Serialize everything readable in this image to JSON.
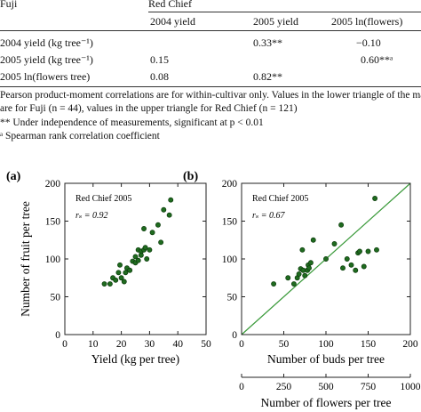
{
  "table": {
    "left_group": "Fuji",
    "right_group": "Red Chief",
    "columns": [
      "2004 yield",
      "2005 yield",
      "2005 ln(flowers)"
    ],
    "rows": [
      {
        "label": "2004 yield (kg tree⁻¹)",
        "cells": [
          "",
          "0.33**",
          "−0.10"
        ]
      },
      {
        "label": "2005 yield (kg tree⁻¹)",
        "cells": [
          "0.15",
          "",
          "0.60**ᵃ"
        ]
      },
      {
        "label": "2005 ln(flowers tree)",
        "cells": [
          "0.08",
          "0.82**",
          ""
        ]
      }
    ]
  },
  "notes": {
    "line1": "Pearson product-moment correlations are for within-cultivar only. Values in the lower triangle of the matrix",
    "line2": "are for Fuji (n = 44), values in the upper triangle for Red Chief (n = 121)",
    "line3": "** Under independence of measurements, significant at p < 0.01",
    "line4": "ᵃ  Spearman rank correlation coefficient"
  },
  "chart_data": [
    {
      "type": "scatter",
      "panel_label": "(a)",
      "annotation": "Red Chief 2005",
      "stat": "rₛ = 0.92",
      "xlabel": "Yield (kg per tree)",
      "ylabel": "Number of fruit per tree",
      "xlim": [
        0,
        50
      ],
      "ylim": [
        0,
        200
      ],
      "xticks": [
        "0",
        "10",
        "20",
        "30",
        "40",
        "50"
      ],
      "yticks": [
        "0",
        "50",
        "100",
        "150",
        "200"
      ],
      "points": [
        [
          14,
          67
        ],
        [
          16,
          67
        ],
        [
          17,
          75
        ],
        [
          18,
          72
        ],
        [
          19,
          82
        ],
        [
          19.5,
          92
        ],
        [
          20,
          75
        ],
        [
          21,
          70
        ],
        [
          21.5,
          82
        ],
        [
          22,
          88
        ],
        [
          23,
          85
        ],
        [
          24,
          97
        ],
        [
          25,
          95
        ],
        [
          25,
          103
        ],
        [
          26,
          98
        ],
        [
          26,
          112
        ],
        [
          27,
          110
        ],
        [
          27,
          105
        ],
        [
          28,
          112
        ],
        [
          28.5,
          115
        ],
        [
          28,
          140
        ],
        [
          29,
          100
        ],
        [
          30,
          112
        ],
        [
          31,
          135
        ],
        [
          33,
          145
        ],
        [
          34,
          122
        ],
        [
          35,
          165
        ],
        [
          37,
          158
        ],
        [
          37.5,
          178
        ]
      ]
    },
    {
      "type": "scatter",
      "panel_label": "(b)",
      "annotation": "Red Chief 2005",
      "stat": "rₛ = 0.67",
      "xlabel": "Number of buds per tree",
      "x2label": "Number of flowers per tree",
      "ylim": [
        0,
        200
      ],
      "xlim": [
        0,
        200
      ],
      "xticks": [
        "0",
        "50",
        "100",
        "150",
        "200"
      ],
      "x2ticks": [
        "0",
        "250",
        "500",
        "750",
        "1000"
      ],
      "x2lim": [
        0,
        1000
      ],
      "yticks": [
        "0",
        "50",
        "100",
        "150",
        "200"
      ],
      "reference_line": "1:1",
      "points": [
        [
          38,
          67
        ],
        [
          55,
          75
        ],
        [
          62,
          67
        ],
        [
          66,
          75
        ],
        [
          68,
          80
        ],
        [
          70,
          87
        ],
        [
          72,
          112
        ],
        [
          73,
          85
        ],
        [
          75,
          78
        ],
        [
          78,
          85
        ],
        [
          79,
          92
        ],
        [
          80,
          88
        ],
        [
          82,
          95
        ],
        [
          85,
          125
        ],
        [
          100,
          100
        ],
        [
          110,
          120
        ],
        [
          118,
          145
        ],
        [
          120,
          88
        ],
        [
          125,
          100
        ],
        [
          130,
          92
        ],
        [
          135,
          85
        ],
        [
          138,
          108
        ],
        [
          140,
          110
        ],
        [
          145,
          90
        ],
        [
          150,
          110
        ],
        [
          158,
          180
        ],
        [
          160,
          112
        ]
      ]
    }
  ]
}
